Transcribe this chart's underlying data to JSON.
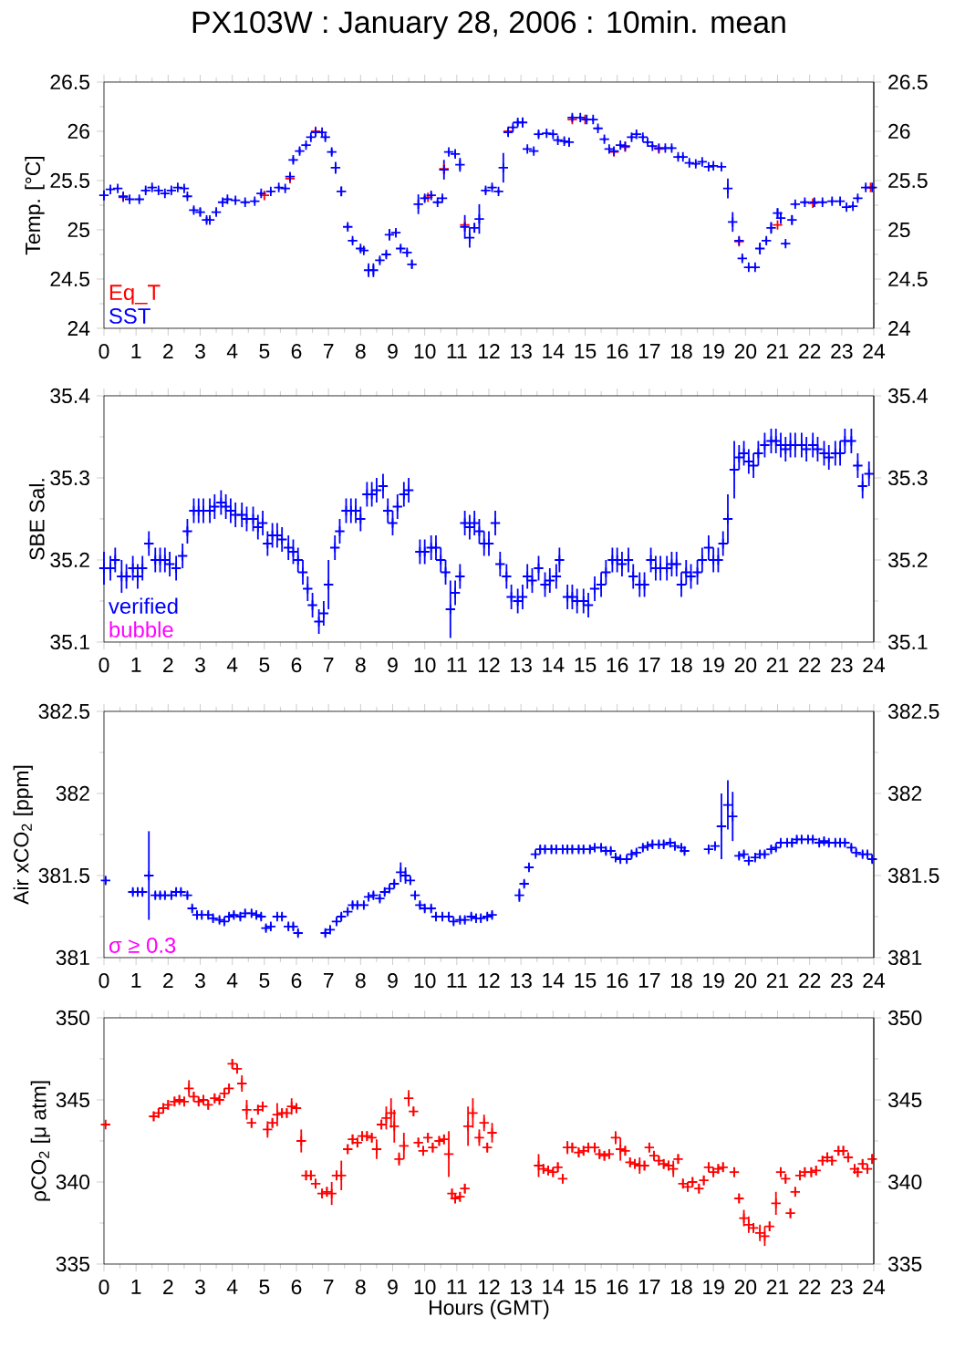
{
  "chart_data": [
    {
      "type": "scatter",
      "title": "PX103W : January 28, 2006 : 10min. mean",
      "ylabel": "Temp. [°C]",
      "marker": "cross",
      "legend": "bottom left",
      "xlim": [
        0,
        24
      ],
      "xticks": [
        0,
        1,
        2,
        3,
        4,
        5,
        6,
        7,
        8,
        9,
        10,
        11,
        12,
        13,
        14,
        15,
        16,
        17,
        18,
        19,
        20,
        21,
        22,
        23,
        24
      ],
      "ylim": [
        24,
        26.5
      ],
      "yticks": [
        24,
        24.5,
        25,
        25.5,
        26,
        26.5
      ],
      "y2lim": [
        24,
        26.5
      ],
      "y2ticks": [
        24,
        24.5,
        25,
        25.5,
        26,
        26.5
      ],
      "series": [
        {
          "name": "Eq_T",
          "color": "#ff0000",
          "x": [
            0.6,
            5.0,
            5.8,
            6.6,
            10.1,
            10.6,
            11.25,
            12.6,
            14.6,
            15.0,
            15.9,
            16.25,
            17.3,
            19.8,
            21.0,
            22.1,
            23.9
          ],
          "values": [
            25.33,
            25.35,
            25.52,
            26.0,
            25.33,
            25.62,
            25.05,
            26.0,
            26.12,
            26.12,
            25.79,
            25.84,
            25.82,
            24.88,
            25.05,
            25.27,
            25.43
          ]
        },
        {
          "name": "SST",
          "color": "#0000ff",
          "x": [
            0,
            0.2,
            0.43,
            0.6,
            0.8,
            1.1,
            1.3,
            1.5,
            1.7,
            1.9,
            2.1,
            2.3,
            2.5,
            2.6,
            2.8,
            3.0,
            3.2,
            3.3,
            3.5,
            3.7,
            3.85,
            4.1,
            4.4,
            4.7,
            4.9,
            5.2,
            5.45,
            5.65,
            5.8,
            5.9,
            6.1,
            6.3,
            6.45,
            6.6,
            6.8,
            6.9,
            7.1,
            7.22,
            7.4,
            7.6,
            7.75,
            8.0,
            8.1,
            8.25,
            8.4,
            8.6,
            8.8,
            8.9,
            9.1,
            9.25,
            9.45,
            9.6,
            9.8,
            10.0,
            10.2,
            10.4,
            10.55,
            10.6,
            10.75,
            10.95,
            11.1,
            11.25,
            11.4,
            11.55,
            11.7,
            11.9,
            12.1,
            12.3,
            12.45,
            12.6,
            12.75,
            12.9,
            13.05,
            13.2,
            13.4,
            13.55,
            13.8,
            14.0,
            14.15,
            14.35,
            14.5,
            14.6,
            14.85,
            15.05,
            15.25,
            15.4,
            15.6,
            15.75,
            15.9,
            16.1,
            16.25,
            16.45,
            16.6,
            16.8,
            16.95,
            17.1,
            17.3,
            17.5,
            17.7,
            17.9,
            18.05,
            18.25,
            18.45,
            18.65,
            18.85,
            19.0,
            19.25,
            19.45,
            19.6,
            19.8,
            19.9,
            20.1,
            20.3,
            20.45,
            20.65,
            20.8,
            21.0,
            21.1,
            21.25,
            21.45,
            21.55,
            21.85,
            22.15,
            22.4,
            22.7,
            22.95,
            23.15,
            23.35,
            23.5,
            23.75,
            23.95
          ],
          "values": [
            25.35,
            25.41,
            25.42,
            25.34,
            25.31,
            25.31,
            25.4,
            25.43,
            25.4,
            25.37,
            25.4,
            25.43,
            25.42,
            25.34,
            25.2,
            25.18,
            25.1,
            25.1,
            25.18,
            25.28,
            25.31,
            25.3,
            25.28,
            25.29,
            25.37,
            25.39,
            25.43,
            25.42,
            25.54,
            25.71,
            25.8,
            25.86,
            25.94,
            25.99,
            25.99,
            25.94,
            25.79,
            25.63,
            25.39,
            25.03,
            24.89,
            24.81,
            24.79,
            24.59,
            24.59,
            24.69,
            24.75,
            24.95,
            24.97,
            24.81,
            24.77,
            24.65,
            25.26,
            25.32,
            25.35,
            25.28,
            25.32,
            25.61,
            25.79,
            25.77,
            25.66,
            25.03,
            24.92,
            25.02,
            25.11,
            25.4,
            25.43,
            25.39,
            25.63,
            25.99,
            26.04,
            26.09,
            26.09,
            25.82,
            25.8,
            25.97,
            25.98,
            25.97,
            25.91,
            25.9,
            25.89,
            26.14,
            26.14,
            26.12,
            26.12,
            26.03,
            25.92,
            25.82,
            25.8,
            25.86,
            25.85,
            25.94,
            25.97,
            25.94,
            25.89,
            25.85,
            25.83,
            25.83,
            25.83,
            25.74,
            25.74,
            25.68,
            25.67,
            25.69,
            25.64,
            25.65,
            25.64,
            25.42,
            25.08,
            24.89,
            24.71,
            24.62,
            24.62,
            24.81,
            24.89,
            25.02,
            25.17,
            25.12,
            24.86,
            25.1,
            25.26,
            25.28,
            25.28,
            25.28,
            25.29,
            25.29,
            25.23,
            25.24,
            25.32,
            25.43,
            25.43
          ],
          "errors": [
            0.05,
            0.02,
            0.02,
            0.02,
            0.02,
            0.02,
            0.02,
            0.02,
            0.02,
            0.02,
            0.02,
            0.02,
            0.02,
            0.02,
            0.03,
            0.04,
            0.03,
            0.03,
            0.03,
            0.02,
            0.02,
            0.02,
            0.02,
            0.02,
            0.02,
            0.02,
            0.02,
            0.02,
            0.03,
            0.03,
            0.03,
            0.02,
            0.02,
            0.02,
            0.02,
            0.03,
            0.03,
            0.06,
            0.05,
            0.03,
            0.02,
            0.02,
            0.02,
            0.07,
            0.07,
            0.03,
            0.03,
            0.06,
            0.03,
            0.03,
            0.03,
            0.04,
            0.1,
            0.03,
            0.03,
            0.02,
            0.02,
            0.1,
            0.02,
            0.03,
            0.07,
            0.12,
            0.1,
            0.05,
            0.15,
            0.03,
            0.02,
            0.02,
            0.15,
            0.02,
            0.02,
            0.03,
            0.05,
            0.02,
            0.02,
            0.03,
            0.02,
            0.02,
            0.02,
            0.03,
            0.04,
            0.02,
            0.02,
            0.02,
            0.02,
            0.02,
            0.02,
            0.02,
            0.02,
            0.02,
            0.02,
            0.02,
            0.02,
            0.02,
            0.02,
            0.02,
            0.02,
            0.02,
            0.02,
            0.02,
            0.02,
            0.02,
            0.02,
            0.02,
            0.02,
            0.02,
            0.02,
            0.1,
            0.1,
            0.02,
            0.03,
            0.02,
            0.02,
            0.06,
            0.03,
            0.06,
            0.05,
            0.06,
            0.02,
            0.05,
            0.02,
            0.02,
            0.02,
            0.02,
            0.02,
            0.02,
            0.02,
            0.02,
            0.02,
            0.02,
            0.02
          ]
        }
      ]
    },
    {
      "type": "scatter",
      "ylabel": "SBE Sal.",
      "marker": "cross",
      "legend": "bottom left",
      "xlim": [
        0,
        24
      ],
      "xticks": [
        0,
        1,
        2,
        3,
        4,
        5,
        6,
        7,
        8,
        9,
        10,
        11,
        12,
        13,
        14,
        15,
        16,
        17,
        18,
        19,
        20,
        21,
        22,
        23,
        24
      ],
      "ylim": [
        35.1,
        35.4
      ],
      "yticks": [
        35.1,
        35.2,
        35.3,
        35.4
      ],
      "y2lim": [
        35.1,
        35.4
      ],
      "y2ticks": [
        35.1,
        35.2,
        35.3,
        35.4
      ],
      "series": [
        {
          "name": "verified",
          "color": "#0000ff",
          "x": [
            0,
            0.2,
            0.35,
            0.55,
            0.7,
            0.9,
            1.05,
            1.2,
            1.4,
            1.6,
            1.75,
            1.9,
            2.05,
            2.25,
            2.45,
            2.6,
            2.8,
            2.95,
            3.1,
            3.3,
            3.45,
            3.65,
            3.8,
            3.95,
            4.1,
            4.3,
            4.45,
            4.65,
            4.8,
            4.95,
            5.1,
            5.25,
            5.4,
            5.55,
            5.75,
            5.9,
            6.05,
            6.2,
            6.35,
            6.5,
            6.7,
            6.85,
            7.0,
            7.2,
            7.35,
            7.55,
            7.7,
            7.85,
            8.0,
            8.2,
            8.35,
            8.5,
            8.7,
            8.85,
            9.0,
            9.15,
            9.35,
            9.5,
            9.85,
            10.0,
            10.2,
            10.35,
            10.5,
            10.65,
            10.8,
            10.95,
            11.1,
            11.25,
            11.4,
            11.55,
            11.7,
            11.85,
            12.0,
            12.2,
            12.35,
            12.55,
            12.7,
            12.9,
            13.05,
            13.2,
            13.35,
            13.55,
            13.75,
            13.9,
            14.1,
            14.2,
            14.45,
            14.6,
            14.75,
            14.95,
            15.1,
            15.3,
            15.5,
            15.65,
            15.85,
            16.0,
            16.15,
            16.35,
            16.5,
            16.7,
            16.85,
            17.05,
            17.2,
            17.35,
            17.55,
            17.7,
            17.85,
            18.0,
            18.15,
            18.3,
            18.5,
            18.65,
            18.85,
            19.0,
            19.15,
            19.3,
            19.45,
            19.65,
            19.8,
            19.95,
            20.1,
            20.25,
            20.4,
            20.6,
            20.8,
            20.95,
            21.1,
            21.25,
            21.4,
            21.55,
            21.75,
            21.9,
            22.1,
            22.25,
            22.45,
            22.6,
            22.8,
            22.95,
            23.1,
            23.3,
            23.5,
            23.65,
            23.85
          ],
          "values": [
            35.19,
            35.19,
            35.2,
            35.18,
            35.18,
            35.19,
            35.18,
            35.19,
            35.22,
            35.2,
            35.2,
            35.2,
            35.195,
            35.19,
            35.205,
            35.235,
            35.26,
            35.26,
            35.26,
            35.26,
            35.265,
            35.27,
            35.265,
            35.26,
            35.255,
            35.255,
            35.25,
            35.25,
            35.24,
            35.245,
            35.22,
            35.23,
            35.23,
            35.225,
            35.215,
            35.21,
            35.2,
            35.185,
            35.165,
            35.145,
            35.125,
            35.135,
            35.17,
            35.215,
            35.235,
            35.26,
            35.26,
            35.26,
            35.25,
            35.28,
            35.28,
            35.285,
            35.29,
            35.26,
            35.245,
            35.265,
            35.28,
            35.285,
            35.21,
            35.21,
            35.215,
            35.215,
            35.2,
            35.185,
            35.14,
            35.16,
            35.18,
            35.245,
            35.24,
            35.245,
            35.235,
            35.22,
            35.22,
            35.245,
            35.195,
            35.18,
            35.155,
            35.15,
            35.155,
            35.18,
            35.175,
            35.19,
            35.17,
            35.175,
            35.18,
            35.2,
            35.155,
            35.155,
            35.15,
            35.15,
            35.145,
            35.165,
            35.17,
            35.185,
            35.2,
            35.2,
            35.195,
            35.2,
            35.18,
            35.17,
            35.17,
            35.2,
            35.19,
            35.19,
            35.19,
            35.195,
            35.195,
            35.17,
            35.185,
            35.18,
            35.185,
            35.2,
            35.215,
            35.2,
            35.2,
            35.22,
            35.25,
            35.31,
            35.325,
            35.33,
            35.32,
            35.315,
            35.33,
            35.34,
            35.345,
            35.345,
            35.34,
            35.335,
            35.34,
            35.34,
            35.34,
            35.335,
            35.34,
            35.335,
            35.33,
            35.325,
            35.33,
            35.33,
            35.345,
            35.345,
            35.315,
            35.29,
            35.305
          ],
          "errors": [
            0.02,
            0.015,
            0.015,
            0.02,
            0.015,
            0.015,
            0.015,
            0.015,
            0.015,
            0.015,
            0.015,
            0.015,
            0.015,
            0.015,
            0.015,
            0.015,
            0.015,
            0.015,
            0.015,
            0.015,
            0.015,
            0.015,
            0.015,
            0.015,
            0.015,
            0.015,
            0.015,
            0.015,
            0.015,
            0.015,
            0.015,
            0.015,
            0.015,
            0.015,
            0.015,
            0.015,
            0.015,
            0.015,
            0.015,
            0.015,
            0.015,
            0.015,
            0.03,
            0.015,
            0.015,
            0.015,
            0.015,
            0.015,
            0.015,
            0.015,
            0.015,
            0.015,
            0.015,
            0.015,
            0.015,
            0.015,
            0.015,
            0.015,
            0.015,
            0.015,
            0.015,
            0.015,
            0.015,
            0.015,
            0.035,
            0.015,
            0.015,
            0.015,
            0.015,
            0.015,
            0.015,
            0.015,
            0.015,
            0.015,
            0.015,
            0.015,
            0.015,
            0.015,
            0.015,
            0.015,
            0.015,
            0.015,
            0.015,
            0.015,
            0.015,
            0.015,
            0.015,
            0.015,
            0.015,
            0.015,
            0.015,
            0.015,
            0.015,
            0.015,
            0.015,
            0.015,
            0.015,
            0.015,
            0.015,
            0.015,
            0.015,
            0.015,
            0.015,
            0.015,
            0.015,
            0.015,
            0.015,
            0.015,
            0.015,
            0.015,
            0.015,
            0.015,
            0.015,
            0.015,
            0.015,
            0.015,
            0.03,
            0.035,
            0.015,
            0.015,
            0.015,
            0.015,
            0.015,
            0.015,
            0.015,
            0.015,
            0.015,
            0.015,
            0.015,
            0.015,
            0.015,
            0.015,
            0.015,
            0.015,
            0.015,
            0.015,
            0.015,
            0.015,
            0.015,
            0.015,
            0.015,
            0.015,
            0.015
          ]
        },
        {
          "name": "bubble",
          "color": "#ff00ff"
        }
      ]
    },
    {
      "type": "scatter",
      "ylabel": "Air xCO$_{2}$ [ppm]",
      "marker": "cross",
      "xlim": [
        0,
        24
      ],
      "xticks": [
        0,
        1,
        2,
        3,
        4,
        5,
        6,
        7,
        8,
        9,
        10,
        11,
        12,
        13,
        14,
        15,
        16,
        17,
        18,
        19,
        20,
        21,
        22,
        23,
        24
      ],
      "ylim": [
        381,
        382.5
      ],
      "yticks": [
        381,
        381.5,
        382,
        382.5
      ],
      "y2lim": [
        381,
        382.5
      ],
      "y2ticks": [
        381,
        381.5,
        382,
        382.5
      ],
      "series": [
        {
          "color": "#0000ff",
          "x": [
            0.05,
            0.9,
            1.05,
            1.2,
            1.4,
            1.6,
            1.75,
            1.9,
            2.1,
            2.25,
            2.4,
            2.6,
            2.75,
            2.9,
            3.05,
            3.25,
            3.4,
            3.6,
            3.75,
            3.9,
            4.05,
            4.25,
            4.4,
            4.6,
            4.75,
            4.9,
            5.05,
            5.2,
            5.4,
            5.55,
            5.75,
            5.9,
            6.05,
            6.9,
            7.05,
            7.25,
            7.4,
            7.6,
            7.75,
            7.9,
            8.1,
            8.25,
            8.4,
            8.6,
            8.75,
            8.9,
            9.05,
            9.25,
            9.4,
            9.55,
            9.7,
            9.85,
            10.0,
            10.2,
            10.35,
            10.55,
            10.75,
            10.9,
            11.1,
            11.25,
            11.45,
            11.6,
            11.75,
            11.95,
            12.1,
            12.95,
            13.1,
            13.25,
            13.45,
            13.6,
            13.75,
            13.95,
            14.1,
            14.3,
            14.45,
            14.6,
            14.8,
            14.95,
            15.15,
            15.3,
            15.5,
            15.65,
            15.8,
            15.95,
            16.1,
            16.3,
            16.45,
            16.6,
            16.8,
            16.95,
            17.1,
            17.3,
            17.45,
            17.65,
            17.8,
            18.0,
            18.1,
            18.85,
            19.05,
            19.25,
            19.45,
            19.6,
            19.8,
            19.95,
            20.1,
            20.3,
            20.45,
            20.6,
            20.8,
            20.95,
            21.1,
            21.3,
            21.45,
            21.6,
            21.75,
            21.95,
            22.1,
            22.3,
            22.45,
            22.6,
            22.8,
            22.95,
            23.1,
            23.3,
            23.45,
            23.65,
            23.8,
            23.95
          ],
          "values": [
            381.47,
            381.4,
            381.4,
            381.4,
            381.5,
            381.38,
            381.38,
            381.38,
            381.38,
            381.4,
            381.4,
            381.38,
            381.3,
            381.26,
            381.26,
            381.26,
            381.24,
            381.23,
            381.22,
            381.25,
            381.26,
            381.25,
            381.27,
            381.27,
            381.26,
            381.25,
            381.18,
            381.19,
            381.25,
            381.25,
            381.19,
            381.19,
            381.15,
            381.15,
            381.17,
            381.22,
            381.25,
            381.28,
            381.32,
            381.32,
            381.32,
            381.37,
            381.38,
            381.36,
            381.4,
            381.42,
            381.45,
            381.52,
            381.5,
            381.47,
            381.38,
            381.32,
            381.3,
            381.3,
            381.25,
            381.25,
            381.25,
            381.22,
            381.23,
            381.23,
            381.25,
            381.24,
            381.24,
            381.25,
            381.26,
            381.38,
            381.45,
            381.55,
            381.63,
            381.66,
            381.66,
            381.66,
            381.66,
            381.66,
            381.66,
            381.66,
            381.66,
            381.66,
            381.66,
            381.67,
            381.67,
            381.65,
            381.65,
            381.61,
            381.6,
            381.6,
            381.63,
            381.64,
            381.67,
            381.68,
            381.69,
            381.69,
            381.69,
            381.7,
            381.68,
            381.67,
            381.65,
            381.66,
            381.68,
            381.8,
            381.93,
            381.86,
            381.62,
            381.63,
            381.59,
            381.61,
            381.63,
            381.63,
            381.66,
            381.67,
            381.7,
            381.7,
            381.7,
            381.72,
            381.72,
            381.72,
            381.72,
            381.7,
            381.71,
            381.7,
            381.7,
            381.7,
            381.7,
            381.67,
            381.64,
            381.63,
            381.63,
            381.6
          ],
          "errors": [
            0.02,
            0.02,
            0.02,
            0.02,
            0.27,
            0.02,
            0.02,
            0.02,
            0.02,
            0.02,
            0.02,
            0.02,
            0.02,
            0.02,
            0.02,
            0.02,
            0.02,
            0.02,
            0.02,
            0.02,
            0.02,
            0.02,
            0.02,
            0.02,
            0.02,
            0.02,
            0.02,
            0.02,
            0.02,
            0.02,
            0.02,
            0.02,
            0.02,
            0.02,
            0.02,
            0.02,
            0.02,
            0.02,
            0.02,
            0.02,
            0.02,
            0.02,
            0.02,
            0.02,
            0.02,
            0.02,
            0.02,
            0.06,
            0.05,
            0.02,
            0.02,
            0.02,
            0.02,
            0.02,
            0.02,
            0.02,
            0.02,
            0.02,
            0.02,
            0.02,
            0.02,
            0.02,
            0.02,
            0.02,
            0.02,
            0.04,
            0.02,
            0.02,
            0.02,
            0.02,
            0.02,
            0.02,
            0.02,
            0.02,
            0.02,
            0.02,
            0.02,
            0.02,
            0.02,
            0.02,
            0.02,
            0.02,
            0.02,
            0.02,
            0.02,
            0.02,
            0.02,
            0.02,
            0.02,
            0.02,
            0.02,
            0.02,
            0.02,
            0.02,
            0.02,
            0.02,
            0.02,
            0.02,
            0.02,
            0.2,
            0.15,
            0.15,
            0.02,
            0.02,
            0.02,
            0.02,
            0.02,
            0.02,
            0.02,
            0.02,
            0.02,
            0.02,
            0.02,
            0.02,
            0.02,
            0.02,
            0.02,
            0.02,
            0.02,
            0.02,
            0.02,
            0.02,
            0.02,
            0.02,
            0.02,
            0.02,
            0.02,
            0.02
          ]
        },
        {
          "name": "σ ≥ 0.3",
          "color": "#ff00ff"
        }
      ]
    },
    {
      "type": "scatter",
      "ylabel": "ρCO$_{2}$ [μ atm]",
      "xlabel": "Hours (GMT)",
      "marker": "cross",
      "xlim": [
        0,
        24
      ],
      "xticks": [
        0,
        1,
        2,
        3,
        4,
        5,
        6,
        7,
        8,
        9,
        10,
        11,
        12,
        13,
        14,
        15,
        16,
        17,
        18,
        19,
        20,
        21,
        22,
        23,
        24
      ],
      "ylim": [
        335,
        350
      ],
      "yticks": [
        335,
        340,
        345,
        350
      ],
      "y2lim": [
        335,
        350
      ],
      "y2ticks": [
        335,
        340,
        345,
        350
      ],
      "series": [
        {
          "color": "#ff0000",
          "x": [
            0.05,
            1.55,
            1.7,
            1.85,
            2.0,
            2.2,
            2.35,
            2.5,
            2.65,
            2.8,
            2.95,
            3.1,
            3.25,
            3.45,
            3.6,
            3.75,
            3.9,
            4.0,
            4.15,
            4.3,
            4.45,
            4.6,
            4.8,
            4.95,
            5.1,
            5.25,
            5.4,
            5.55,
            5.7,
            5.85,
            6.0,
            6.15,
            6.3,
            6.45,
            6.6,
            6.8,
            6.95,
            7.1,
            7.25,
            7.4,
            7.6,
            7.75,
            7.9,
            8.05,
            8.2,
            8.35,
            8.5,
            8.65,
            8.8,
            8.95,
            9.05,
            9.2,
            9.35,
            9.5,
            9.65,
            9.8,
            9.95,
            10.1,
            10.25,
            10.45,
            10.6,
            10.75,
            10.85,
            10.95,
            11.1,
            11.25,
            11.35,
            11.5,
            11.7,
            11.85,
            11.95,
            12.1,
            13.55,
            13.7,
            13.85,
            14.0,
            14.15,
            14.3,
            14.45,
            14.6,
            14.8,
            14.95,
            15.1,
            15.3,
            15.45,
            15.6,
            15.75,
            15.95,
            16.1,
            16.25,
            16.4,
            16.55,
            16.7,
            16.85,
            17.0,
            17.15,
            17.3,
            17.45,
            17.6,
            17.75,
            17.9,
            18.05,
            18.2,
            18.35,
            18.55,
            18.7,
            18.85,
            19.0,
            19.15,
            19.3,
            19.65,
            19.8,
            19.95,
            20.1,
            20.25,
            20.45,
            20.6,
            20.75,
            20.95,
            21.1,
            21.25,
            21.4,
            21.55,
            21.7,
            21.85,
            22.05,
            22.2,
            22.4,
            22.55,
            22.7,
            22.9,
            23.05,
            23.2,
            23.4,
            23.5,
            23.65,
            23.8,
            23.95
          ],
          "values": [
            343.5,
            344,
            344.2,
            344.5,
            344.7,
            344.9,
            345,
            344.9,
            345.7,
            345.2,
            344.9,
            345,
            344.7,
            345.1,
            345,
            345.4,
            345.7,
            347.2,
            346.9,
            346,
            344.4,
            343.6,
            344.4,
            344.6,
            343.2,
            343.6,
            344.1,
            344.2,
            344.2,
            344.6,
            344.5,
            342.5,
            340.4,
            340.4,
            339.9,
            339.3,
            339.4,
            339.3,
            340.4,
            340.4,
            342,
            342.6,
            342.4,
            342.8,
            342.8,
            342.7,
            342,
            343.5,
            343.9,
            344.2,
            343.4,
            341.4,
            342.2,
            345.1,
            344.3,
            342.4,
            341.9,
            342.7,
            342.1,
            342.5,
            342.6,
            341.7,
            339.3,
            339,
            339.1,
            339.6,
            343.4,
            344.2,
            342.7,
            343.6,
            342.1,
            343,
            341,
            340.8,
            340.7,
            340.6,
            340.9,
            340.2,
            342.1,
            342.1,
            341.8,
            341.9,
            342.1,
            342.1,
            341.7,
            341.6,
            341.7,
            342.7,
            342,
            341.9,
            341.2,
            341.1,
            341,
            341,
            342.1,
            341.6,
            341.3,
            341.1,
            341,
            340.8,
            341.4,
            339.9,
            339.7,
            340,
            339.6,
            340.1,
            340.9,
            340.6,
            340.8,
            340.9,
            340.6,
            339,
            337.8,
            337.4,
            337.2,
            336.9,
            336.7,
            337.3,
            338.7,
            340.6,
            340.2,
            338.1,
            339.4,
            340.4,
            340.6,
            340.6,
            340.7,
            341.3,
            341.5,
            341.3,
            341.9,
            341.9,
            341.5,
            340.8,
            340.6,
            341.1,
            340.8,
            341.4
          ],
          "errors": [
            0.1,
            0.3,
            0.3,
            0.3,
            0.3,
            0.3,
            0.3,
            0.3,
            0.5,
            0.3,
            0.3,
            0.3,
            0.3,
            0.3,
            0.3,
            0.3,
            0.3,
            0.3,
            0.3,
            0.5,
            0.6,
            0.3,
            0.3,
            0.3,
            0.5,
            0.3,
            0.7,
            0.3,
            0.3,
            0.5,
            0.3,
            0.7,
            0.3,
            0.3,
            0.3,
            0.3,
            0.3,
            0.7,
            0.3,
            0.9,
            0.3,
            0.3,
            0.3,
            0.3,
            0.3,
            0.3,
            0.6,
            0.3,
            0.7,
            0.9,
            1.0,
            0.4,
            0.8,
            0.5,
            0.3,
            0.3,
            0.3,
            0.3,
            0.3,
            0.3,
            0.3,
            1.4,
            0.3,
            0.3,
            0.3,
            0.3,
            1.2,
            0.9,
            0.5,
            0.5,
            0.3,
            0.6,
            0.7,
            0.3,
            0.3,
            0.3,
            0.3,
            0.3,
            0.4,
            0.3,
            0.3,
            0.3,
            0.3,
            0.3,
            0.3,
            0.3,
            0.3,
            0.4,
            0.7,
            0.3,
            0.3,
            0.3,
            0.5,
            0.3,
            0.3,
            0.3,
            0.3,
            0.3,
            0.3,
            0.5,
            0.3,
            0.3,
            0.3,
            0.3,
            0.3,
            0.3,
            0.3,
            0.3,
            0.3,
            0.3,
            0.3,
            0.3,
            0.5,
            0.5,
            0.3,
            0.5,
            0.6,
            0.3,
            0.7,
            0.3,
            0.3,
            0.3,
            0.3,
            0.3,
            0.3,
            0.3,
            0.3,
            0.3,
            0.3,
            0.3,
            0.3,
            0.3,
            0.3,
            0.3,
            0.3,
            0.3,
            0.3,
            0.3
          ]
        }
      ]
    }
  ]
}
